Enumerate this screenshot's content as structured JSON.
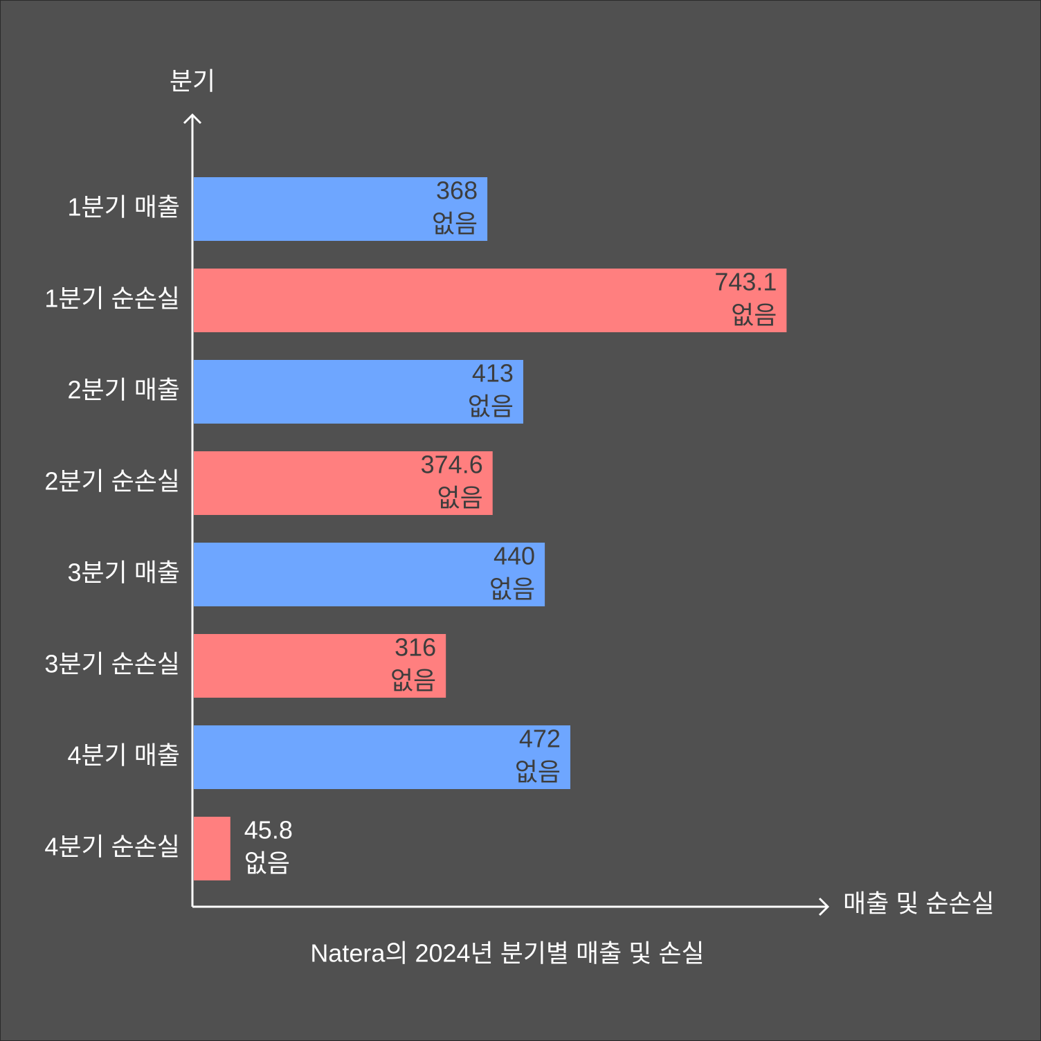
{
  "chart_data": {
    "type": "bar",
    "orientation": "horizontal",
    "title": "Natera의 2024년 분기별 매출 및 손실",
    "x_label": "매출 및 순손실",
    "y_label": "분기",
    "categories": [
      "1분기 매출",
      "1분기 순손실",
      "2분기 매출",
      "2분기 순손실",
      "3분기 매출",
      "3분기 순손실",
      "4분기 매출",
      "4분기 순손실"
    ],
    "values": [
      368,
      743.1,
      413,
      374.6,
      440,
      316,
      472,
      45.8
    ],
    "value_notes": [
      "없음",
      "없음",
      "없음",
      "없음",
      "없음",
      "없음",
      "없음",
      "없음"
    ],
    "colors": [
      "#6ea6ff",
      "#ff7f7f",
      "#6ea6ff",
      "#ff7f7f",
      "#6ea6ff",
      "#ff7f7f",
      "#6ea6ff",
      "#ff7f7f"
    ],
    "xlim": [
      0,
      800
    ],
    "grid": false
  }
}
